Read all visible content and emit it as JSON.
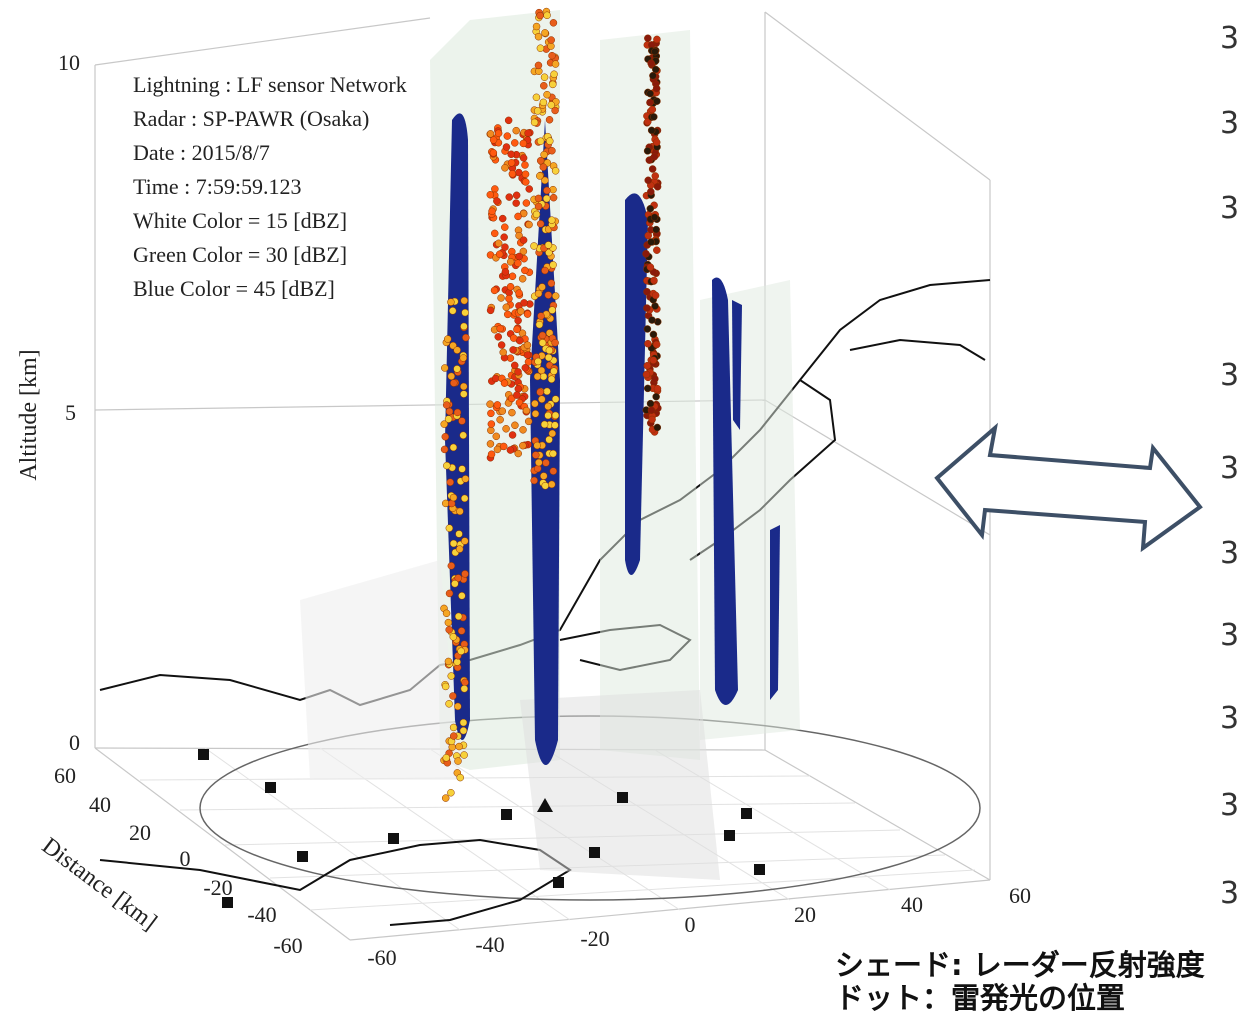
{
  "info_box": {
    "lines": [
      "Lightning : LF sensor Network",
      "Radar : SP-PAWR (Osaka)",
      "Date : 2015/8/7",
      "Time : 7:59:59.123",
      "White Color = 15 [dBZ]",
      "Green Color = 30 [dBZ]",
      "Blue Color = 45 [dBZ]"
    ]
  },
  "z_axis": {
    "label": "Altitude [km]",
    "ticks": [
      0,
      5,
      10
    ]
  },
  "y_axis": {
    "label": "Distance [km]",
    "ticks": [
      60,
      40,
      20,
      0,
      -20,
      -40,
      -60
    ]
  },
  "x_axis": {
    "ticks": [
      -60,
      -40,
      -20,
      0,
      20,
      40,
      60
    ]
  },
  "caption": {
    "lines": [
      "シェード: レーダー反射強度",
      "ドット：雷発光の位置"
    ]
  },
  "right_edge_labels": [
    "3",
    "3",
    "3",
    "3",
    "3",
    "3",
    "3",
    "3",
    "3",
    "3"
  ]
}
